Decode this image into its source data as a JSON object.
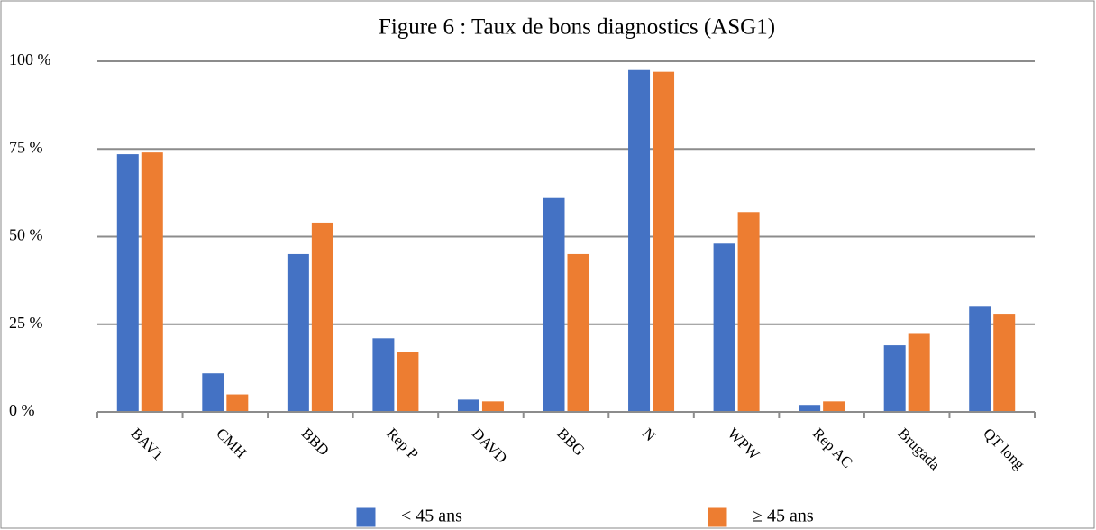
{
  "chart_data": {
    "type": "bar",
    "title": "Figure 6 : Taux de bons diagnostics (ASG1)",
    "categories": [
      "BAV1",
      "CMH",
      "BBD",
      "Rep P",
      "DAVD",
      "BBG",
      "N",
      "WPW",
      "Rep AC",
      "Brugada",
      "QT long"
    ],
    "series": [
      {
        "name": "< 45 ans",
        "color": "#4472c4",
        "values": [
          73.5,
          11,
          45,
          21,
          3.5,
          61,
          97.5,
          48,
          2,
          19,
          30
        ]
      },
      {
        "name": "≥ 45 ans",
        "color": "#ed7d31",
        "values": [
          74,
          5,
          54,
          17,
          3,
          45,
          97,
          57,
          3,
          22.5,
          28
        ]
      }
    ],
    "ylim": [
      0,
      100
    ],
    "yticks": [
      {
        "value": 0,
        "label": "0 %"
      },
      {
        "value": 25,
        "label": "25 %"
      },
      {
        "value": 50,
        "label": "50 %"
      },
      {
        "value": 75,
        "label": "75 %"
      },
      {
        "value": 100,
        "label": "100 %"
      }
    ],
    "grid": true
  }
}
